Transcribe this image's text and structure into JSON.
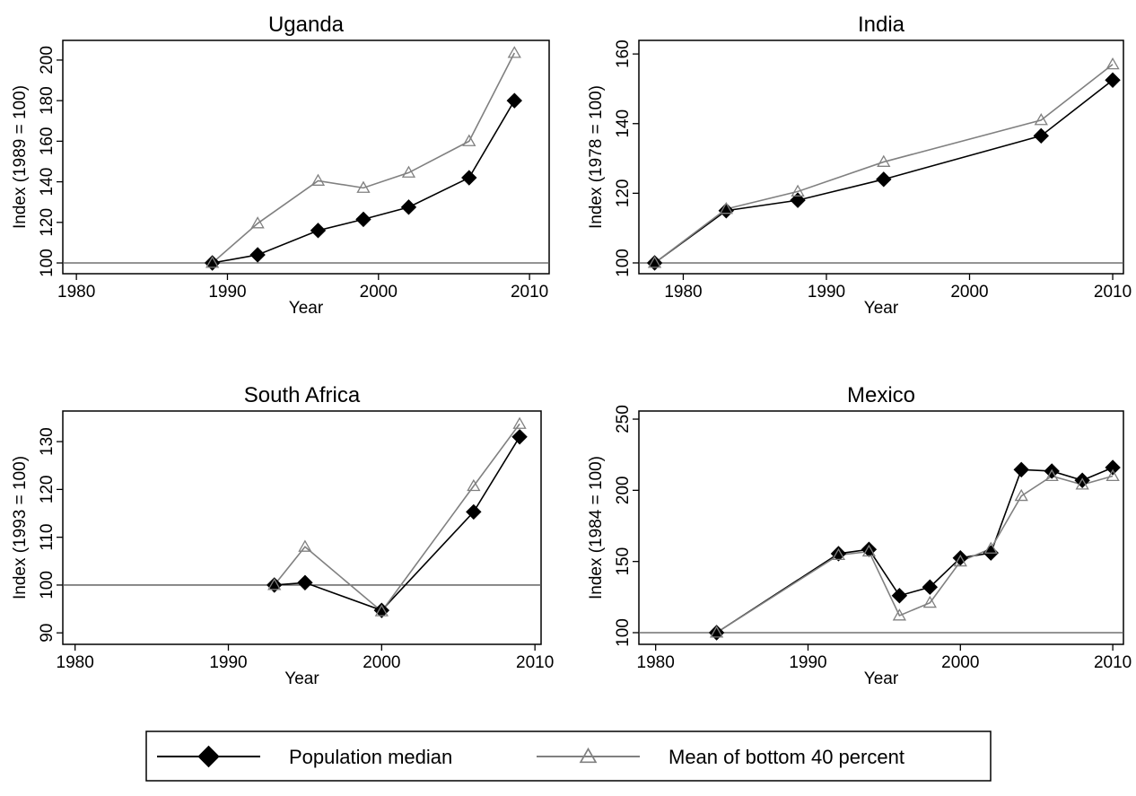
{
  "chart_data": [
    {
      "type": "line",
      "title": "Uganda",
      "xlabel": "Year",
      "ylabel": "Index (1989 = 100)",
      "x": [
        1989,
        1992,
        1996,
        1999,
        2002,
        2006,
        2009
      ],
      "series": [
        {
          "name": "Population median",
          "color": "#000000",
          "marker": "diamond",
          "values": [
            100,
            104,
            116,
            121.5,
            127.5,
            142,
            180
          ]
        },
        {
          "name": "Mean of bottom 40 percent",
          "color": "#808080",
          "marker": "triangle",
          "values": [
            100,
            119.5,
            140.5,
            137,
            144.5,
            160,
            203.5
          ]
        }
      ],
      "xlim": [
        1979.1,
        2011.3
      ],
      "xticks": [
        1980,
        1990,
        2000,
        2010
      ],
      "ylim": [
        94.7,
        209.7
      ],
      "yticks": [
        100,
        120,
        140,
        160,
        180,
        200
      ],
      "hline": 100
    },
    {
      "type": "line",
      "title": "India",
      "xlabel": "Year",
      "ylabel": "Index (1978 = 100)",
      "x": [
        1978,
        1983,
        1988,
        1994,
        2005,
        2010
      ],
      "series": [
        {
          "name": "Population median",
          "color": "#000000",
          "marker": "diamond",
          "values": [
            100,
            115,
            118,
            124,
            136.5,
            152.5
          ]
        },
        {
          "name": "Mean of bottom 40 percent",
          "color": "#808080",
          "marker": "triangle",
          "values": [
            100,
            115.5,
            120.5,
            129,
            141,
            157
          ]
        }
      ],
      "xlim": [
        1976.9,
        2010.75
      ],
      "xticks": [
        1980,
        1990,
        2000,
        2010
      ],
      "ylim": [
        96.9,
        163.9
      ],
      "yticks": [
        100,
        120,
        140,
        160
      ],
      "hline": 100
    },
    {
      "type": "line",
      "title": "South Africa",
      "xlabel": "Year",
      "ylabel": "Index (1993 = 100)",
      "x": [
        1993,
        1995,
        2000,
        2006,
        2009
      ],
      "series": [
        {
          "name": "Population median",
          "color": "#000000",
          "marker": "diamond",
          "values": [
            100,
            100.5,
            94.7,
            115.3,
            131
          ]
        },
        {
          "name": "Mean of bottom 40 percent",
          "color": "#808080",
          "marker": "triangle",
          "values": [
            100,
            108,
            94.5,
            120.7,
            133.7
          ]
        }
      ],
      "xlim": [
        1979.2,
        2010.4
      ],
      "xticks": [
        1980,
        1990,
        2000,
        2010
      ],
      "ylim": [
        87.6,
        136.4
      ],
      "yticks": [
        90,
        100,
        110,
        120,
        130
      ],
      "hline": 100
    },
    {
      "type": "line",
      "title": "Mexico",
      "xlabel": "Year",
      "ylabel": "Index (1984 = 100)",
      "x": [
        1984,
        1992,
        1994,
        1996,
        1998,
        2000,
        2002,
        2004,
        2006,
        2008,
        2010
      ],
      "series": [
        {
          "name": "Population median",
          "color": "#000000",
          "marker": "diamond",
          "values": [
            100,
            155.5,
            158.5,
            126,
            132,
            152.5,
            156,
            214.5,
            213.5,
            207,
            216
          ]
        },
        {
          "name": "Mean of bottom 40 percent",
          "color": "#808080",
          "marker": "triangle",
          "values": [
            100,
            154.5,
            157,
            112,
            121,
            150,
            159,
            196,
            210,
            204,
            210
          ]
        }
      ],
      "xlim": [
        1978.9,
        2010.7
      ],
      "xticks": [
        1980,
        1990,
        2000,
        2010
      ],
      "ylim": [
        91.8,
        255.7
      ],
      "yticks": [
        100,
        150,
        200,
        250
      ],
      "hline": 100
    }
  ]
}
